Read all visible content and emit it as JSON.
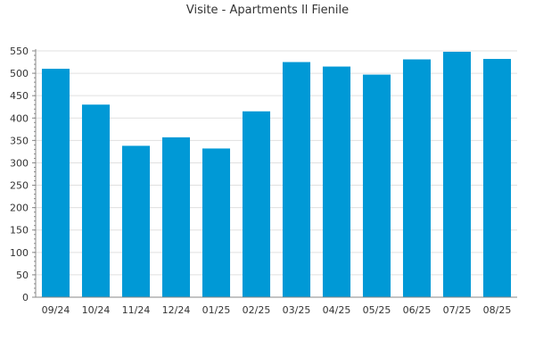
{
  "chart_data": {
    "type": "bar",
    "title": "Visite - Apartments Il Fienile",
    "xlabel": "",
    "ylabel": "",
    "categories": [
      "09/24",
      "10/24",
      "11/24",
      "12/24",
      "01/25",
      "02/25",
      "03/25",
      "04/25",
      "05/25",
      "06/25",
      "07/25",
      "08/25"
    ],
    "values": [
      510,
      430,
      338,
      357,
      332,
      415,
      525,
      515,
      497,
      531,
      548,
      532
    ],
    "ylim": [
      0,
      550
    ],
    "yticks": [
      0,
      50,
      100,
      150,
      200,
      250,
      300,
      350,
      400,
      450,
      500,
      550
    ],
    "grid": true,
    "legend": "none",
    "colors": {
      "bar": "#0099d6",
      "grid": "#e0e0e0",
      "axis": "#888888"
    }
  }
}
